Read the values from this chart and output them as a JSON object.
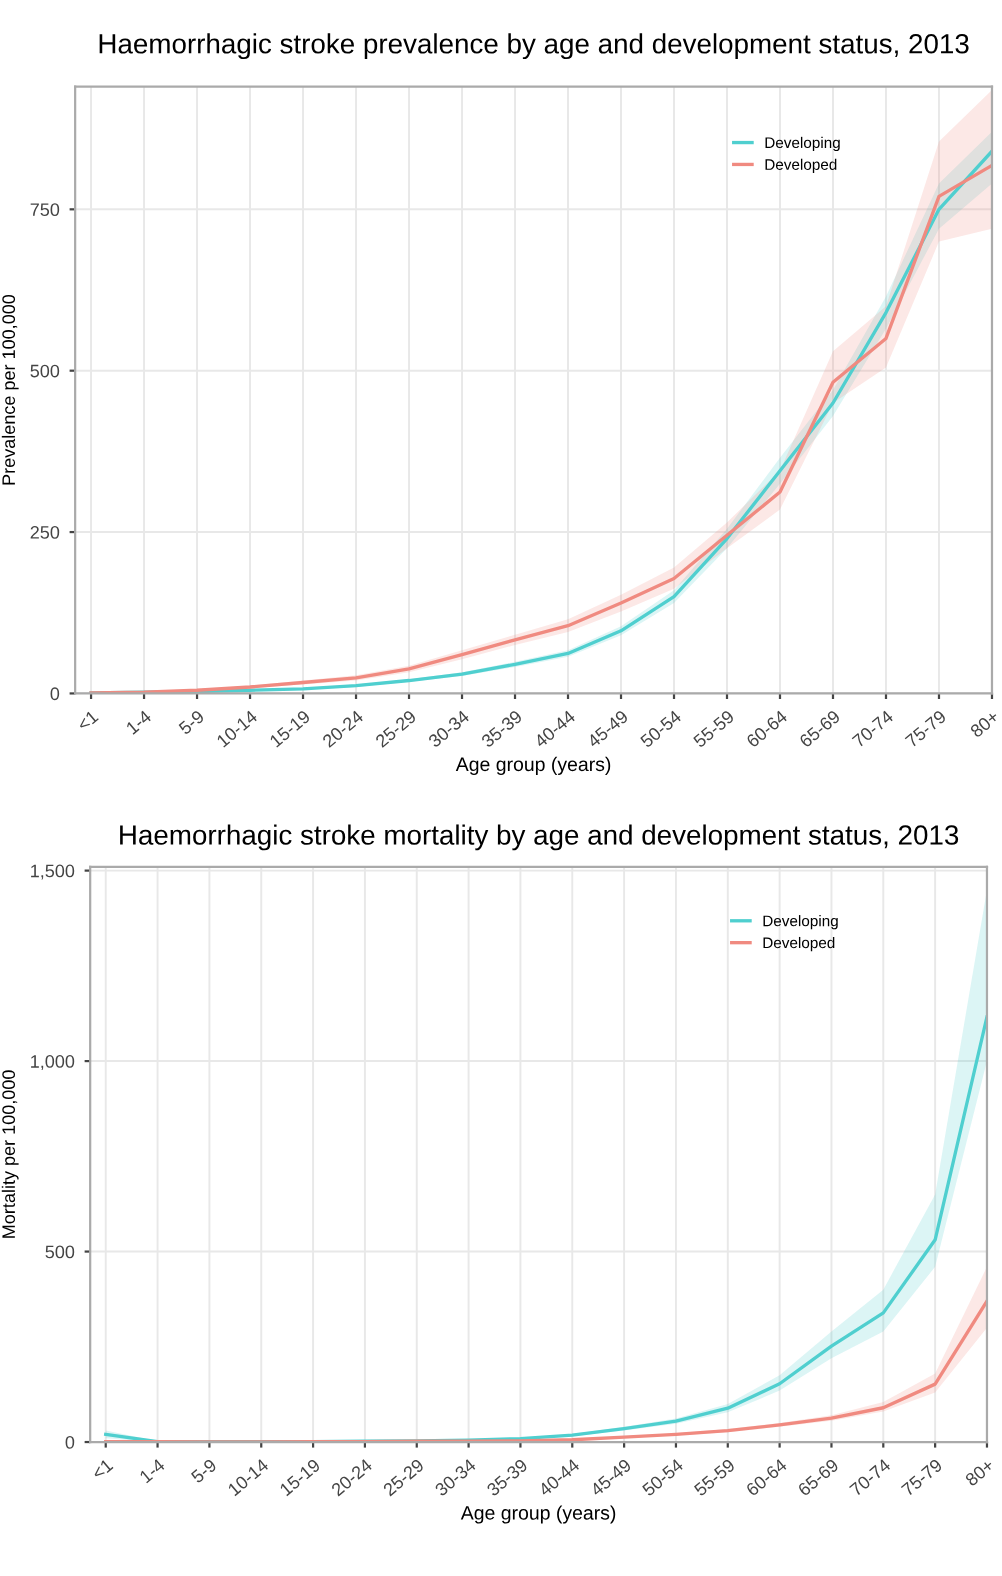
{
  "chart_data": [
    {
      "type": "line",
      "title": "Haemorrhagic stroke prevalence by age and development status, 2013",
      "xlabel": "Age group (years)",
      "ylabel": "Prevalence per 100,000",
      "categories": [
        "<1",
        "1-4",
        "5-9",
        "10-14",
        "15-19",
        "20-24",
        "25-29",
        "30-34",
        "35-39",
        "40-44",
        "45-49",
        "50-54",
        "55-59",
        "60-64",
        "65-69",
        "70-74",
        "75-79",
        "80+"
      ],
      "ylim": [
        0,
        940
      ],
      "yticks": [
        0,
        250,
        500,
        750
      ],
      "grid": true,
      "legend": "top right",
      "marker": "none",
      "line_style": "solid",
      "series": [
        {
          "name": "Developing",
          "color": "#4fcfcf",
          "values": [
            1,
            2,
            3,
            5,
            7,
            12,
            20,
            30,
            45,
            62,
            97,
            150,
            240,
            345,
            450,
            590,
            750,
            840
          ],
          "lower": [
            0,
            1,
            2,
            4,
            6,
            10,
            18,
            27,
            41,
            57,
            90,
            140,
            225,
            325,
            430,
            565,
            720,
            790
          ],
          "upper": [
            2,
            3,
            4,
            6,
            8,
            14,
            22,
            33,
            49,
            67,
            104,
            160,
            255,
            365,
            470,
            615,
            790,
            870
          ]
        },
        {
          "name": "Developed",
          "color": "#f08a80",
          "values": [
            1,
            2,
            5,
            10,
            17,
            24,
            38,
            60,
            83,
            105,
            140,
            178,
            245,
            312,
            482,
            550,
            770,
            818
          ],
          "lower": [
            0,
            1,
            3,
            8,
            14,
            20,
            33,
            53,
            75,
            95,
            127,
            162,
            225,
            285,
            450,
            505,
            700,
            720
          ],
          "upper": [
            2,
            3,
            7,
            12,
            20,
            28,
            43,
            67,
            91,
            115,
            153,
            195,
            265,
            345,
            530,
            600,
            855,
            935
          ]
        }
      ]
    },
    {
      "type": "line",
      "title": "Haemorrhagic stroke mortality by age and development status, 2013",
      "xlabel": "Age group (years)",
      "ylabel": "Mortality per 100,000",
      "categories": [
        "<1",
        "1-4",
        "5-9",
        "10-14",
        "15-19",
        "20-24",
        "25-29",
        "30-34",
        "35-39",
        "40-44",
        "45-49",
        "50-54",
        "55-59",
        "60-64",
        "65-69",
        "70-74",
        "75-79",
        "80+"
      ],
      "ylim": [
        0,
        1510
      ],
      "yticks": [
        0,
        500,
        {
          "value": 1000,
          "label": "1,000"
        },
        {
          "value": 1500,
          "label": "1,500"
        }
      ],
      "grid": true,
      "legend": "top right",
      "marker": "none",
      "line_style": "solid",
      "series": [
        {
          "name": "Developing",
          "color": "#4fcfcf",
          "values": [
            20,
            1,
            1,
            1,
            1,
            2,
            3,
            5,
            9,
            18,
            35,
            55,
            89,
            153,
            252,
            339,
            531,
            1116
          ],
          "lower": [
            10,
            0,
            0,
            0,
            0,
            1,
            2,
            4,
            7,
            15,
            30,
            48,
            78,
            135,
            220,
            290,
            460,
            1000
          ],
          "upper": [
            30,
            2,
            1,
            1,
            2,
            3,
            4,
            6,
            11,
            21,
            40,
            62,
            100,
            175,
            290,
            400,
            650,
            1450
          ]
        },
        {
          "name": "Developed",
          "color": "#f08a80",
          "values": [
            1,
            1,
            0,
            0,
            1,
            1,
            2,
            2,
            3,
            6,
            13,
            20,
            30,
            45,
            63,
            90,
            152,
            370
          ],
          "lower": [
            0,
            0,
            0,
            0,
            0,
            0,
            1,
            1,
            2,
            5,
            11,
            17,
            26,
            40,
            56,
            80,
            130,
            300
          ],
          "upper": [
            2,
            1,
            1,
            1,
            1,
            2,
            2,
            3,
            4,
            7,
            15,
            23,
            34,
            50,
            70,
            105,
            180,
            460
          ]
        }
      ]
    }
  ]
}
